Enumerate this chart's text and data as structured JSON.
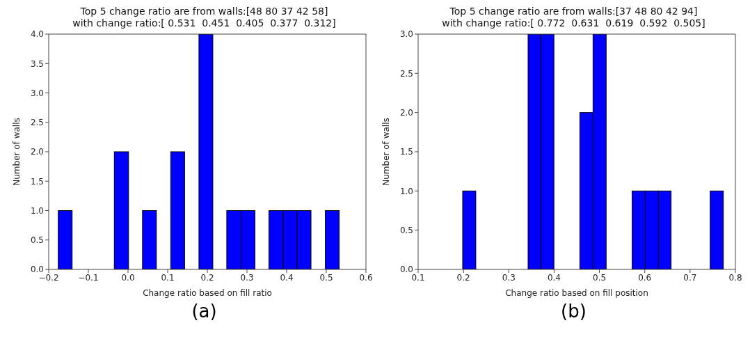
{
  "chart_data": [
    {
      "type": "histogram",
      "title": "Top 5 change ratio are from walls:[48 80 37 42 58]\nwith change ratio:[ 0.531  0.451  0.405  0.377  0.312]",
      "xlabel": "Change ratio based on fill ratio",
      "ylabel": "Number of walls",
      "color": "#0000ff",
      "bins": [
        -0.176,
        -0.141,
        -0.035,
        0.001,
        0.036,
        0.071,
        0.107,
        0.142,
        0.178,
        0.213,
        0.248,
        0.284,
        0.319,
        0.354,
        0.39,
        0.425,
        0.46,
        0.496,
        0.531
      ],
      "values": [
        1,
        0,
        2,
        0,
        1,
        0,
        2,
        0,
        4,
        0,
        1,
        1,
        0,
        1,
        1,
        1,
        0,
        1
      ],
      "xlim": [
        -0.2,
        0.6
      ],
      "xticks": [
        {
          "value": -0.2,
          "label": "−0.2"
        },
        {
          "value": -0.1,
          "label": "−0.1"
        },
        {
          "value": 0,
          "label": "0.0"
        },
        0.1,
        0.2,
        0.3,
        0.4,
        0.5,
        0.6
      ],
      "ylim": [
        0,
        4
      ],
      "yticks": [
        {
          "value": 0,
          "label": "0.0"
        },
        0.5,
        {
          "value": 1,
          "label": "1.0"
        },
        1.5,
        {
          "value": 2,
          "label": "2.0"
        },
        2.5,
        {
          "value": 3,
          "label": "3.0"
        },
        3.5,
        {
          "value": 4,
          "label": "4.0"
        }
      ],
      "annotations": [
        "(a)"
      ],
      "grid": false,
      "legend": false
    },
    {
      "type": "histogram",
      "title": "Top 5 change ratio are from walls:[37 48 80 42 94]\nwith change ratio:[ 0.772  0.631  0.619  0.592  0.505]",
      "xlabel": "Change ratio based on fill position",
      "ylabel": "Number of walls",
      "color": "#0000ff",
      "bins": [
        0.198,
        0.227,
        0.342,
        0.37,
        0.399,
        0.456,
        0.485,
        0.514,
        0.571,
        0.6,
        0.629,
        0.657,
        0.743,
        0.772
      ],
      "values": [
        1,
        0,
        3,
        3,
        0,
        2,
        3,
        0,
        1,
        1,
        1,
        0,
        1
      ],
      "xlim": [
        0.1,
        0.8
      ],
      "xticks": [
        0.1,
        0.2,
        0.3,
        0.4,
        0.5,
        0.6,
        0.7,
        0.8
      ],
      "ylim": [
        0,
        3
      ],
      "yticks": [
        {
          "value": 0,
          "label": "0.0"
        },
        0.5,
        {
          "value": 1,
          "label": "1.0"
        },
        1.5,
        {
          "value": 2,
          "label": "2.0"
        },
        2.5,
        {
          "value": 3,
          "label": "3.0"
        }
      ],
      "annotations": [
        "(b)"
      ],
      "grid": false,
      "legend": false
    }
  ]
}
